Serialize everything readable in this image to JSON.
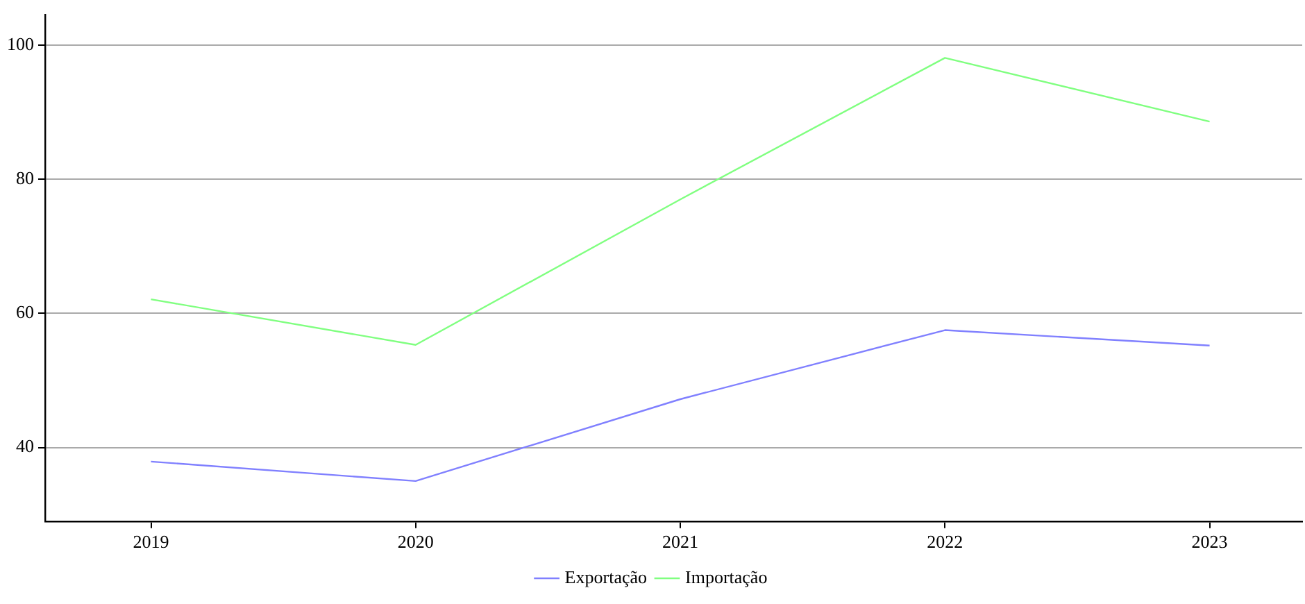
{
  "chart_data": {
    "type": "line",
    "x": [
      2019,
      2020,
      2021,
      2022,
      2023
    ],
    "series": [
      {
        "name": "Exportação",
        "color": "#8080ff",
        "values": [
          37.9,
          35,
          47.2,
          57.5,
          55.2
        ]
      },
      {
        "name": "Importação",
        "color": "#80ff80",
        "values": [
          62.1,
          55.3,
          77,
          98.1,
          88.6
        ]
      }
    ],
    "xlim": [
      2018.6,
      2023.35
    ],
    "xticks": [
      2019,
      2020,
      2021,
      2022,
      2023
    ],
    "ylim": [
      29,
      104.5
    ],
    "yticks": [
      40,
      60,
      80,
      100
    ],
    "grid": "y",
    "legend": "bottom",
    "marker": "none",
    "line_style": "solid"
  }
}
